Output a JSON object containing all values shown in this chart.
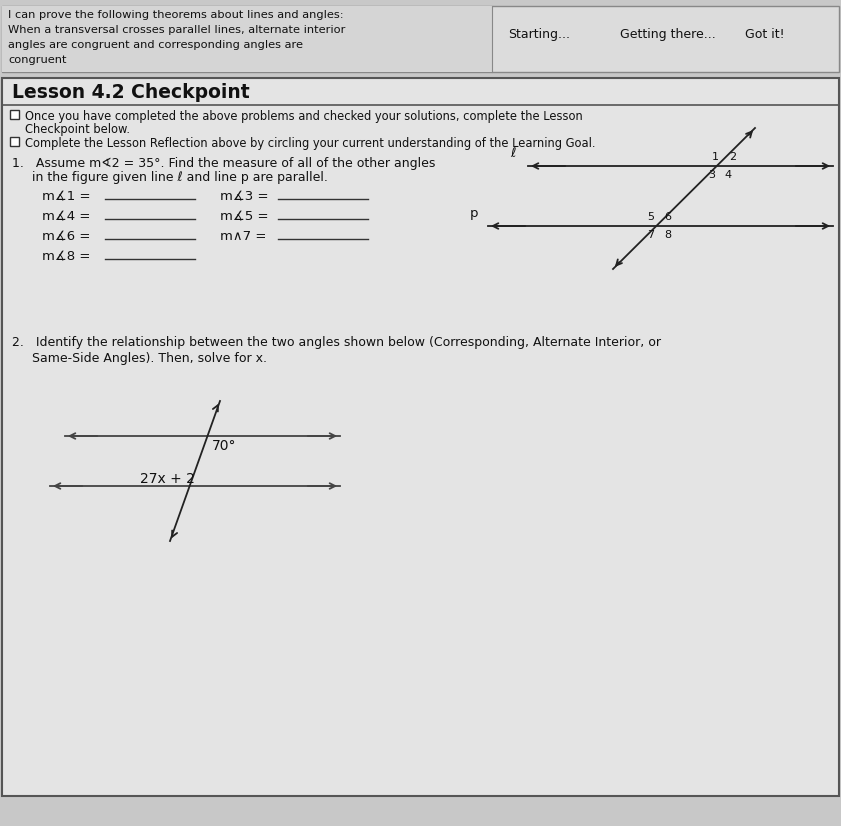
{
  "bg_color": "#c8c8c8",
  "paper_color": "#e8e8e8",
  "header_bg": "#dcdcdc",
  "border_color": "#444444",
  "header_text_lines": [
    "I can prove the following theorems about lines and angles:",
    "When a transversal crosses parallel lines, alternate interior",
    "angles are congruent and corresponding angles are",
    "congruent"
  ],
  "header_options": [
    "Starting...",
    "Getting there...",
    "Got it!"
  ],
  "title": "Lesson 4.2 Checkpoint",
  "cb1_line1": "Once you have completed the above problems and checked your solutions, complete the Lesson",
  "cb1_line2": "Checkpoint below.",
  "cb2_line1": "Complete the Lesson Reflection above by circling your current understanding of the Learning Goal.",
  "q1_line1": "1.   Assume m∢2 = 35°. Find the measure of all of the other angles",
  "q1_line2": "     in the figure given line ℓ and line p are parallel.",
  "left_angle_labels": [
    "m∡1 =",
    "m∡4 =",
    "m∡6 =",
    "m∡8 ="
  ],
  "right_angle_labels": [
    "m∡3 =",
    "m∡5 =",
    "m∧7 ="
  ],
  "q2_line1": "2.   Identify the relationship between the two angles shown below (Corresponding, Alternate Interior, or",
  "q2_line2": "     Same-Side Angles). Then, solve for x.",
  "angle1_label": "70°",
  "angle2_label": "27x + 2",
  "text_color": "#111111",
  "line_color": "#333333"
}
